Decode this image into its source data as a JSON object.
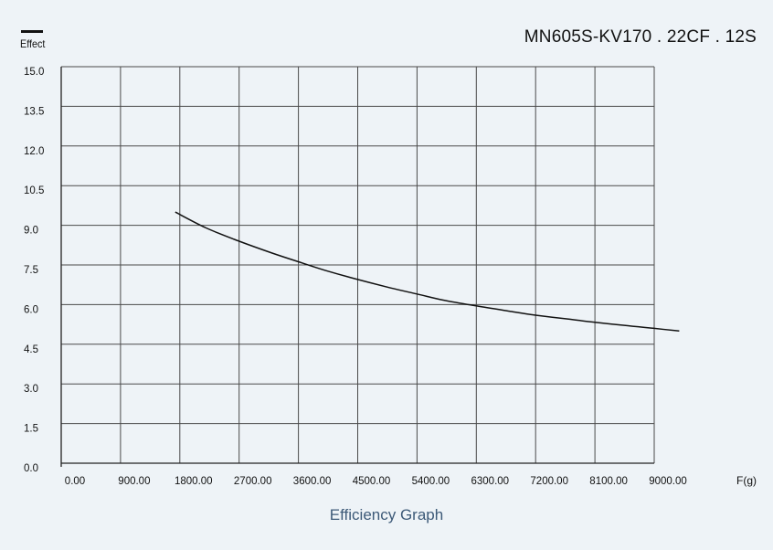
{
  "chart_data": {
    "type": "line",
    "title": "MN605S-KV170 . 22CF . 12S",
    "caption": "Efficiency Graph",
    "legend": [
      "Effect"
    ],
    "xlabel": "F(g)",
    "ylabel": "",
    "xlim": [
      0,
      9000
    ],
    "ylim": [
      0,
      15
    ],
    "x_ticks": [
      "0.00",
      "900.00",
      "1800.00",
      "2700.00",
      "3600.00",
      "4500.00",
      "5400.00",
      "6300.00",
      "7200.00",
      "8100.00",
      "9000.00"
    ],
    "y_ticks": [
      "0.0",
      "1.5",
      "3.0",
      "4.5",
      "6.0",
      "7.5",
      "9.0",
      "10.5",
      "12.0",
      "13.5",
      "15.0"
    ],
    "grid": true,
    "line_color": "#111111",
    "series": [
      {
        "name": "Effect",
        "x": [
          1730,
          2200,
          2700,
          3200,
          3600,
          4000,
          4500,
          5000,
          5400,
          5800,
          6300,
          6800,
          7200,
          7700,
          8100,
          8600,
          9000,
          9380
        ],
        "y": [
          9.5,
          8.9,
          8.4,
          7.95,
          7.62,
          7.3,
          6.95,
          6.63,
          6.4,
          6.17,
          5.95,
          5.75,
          5.6,
          5.45,
          5.33,
          5.2,
          5.1,
          5.0
        ]
      }
    ]
  }
}
